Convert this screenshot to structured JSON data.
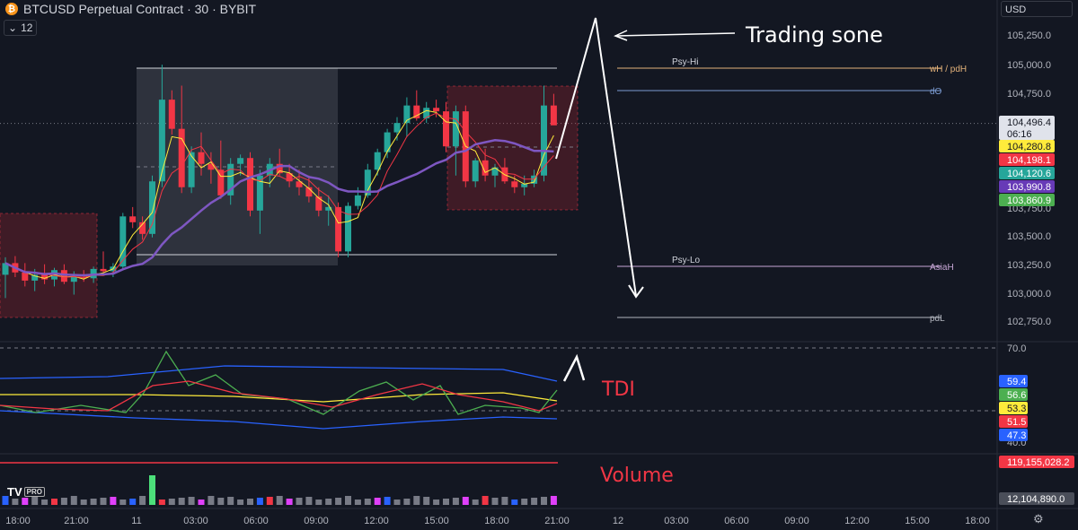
{
  "header": {
    "title": "BTCUSD Perpetual Contract · 30 · BYBIT",
    "logo_glyph": "₿",
    "collapse_label": "12",
    "currency": "USD"
  },
  "price_axis": {
    "ticks": [
      "105,250.0",
      "105,000.0",
      "104,750.0",
      "103,750.0",
      "103,500.0",
      "103,250.0",
      "103,000.0",
      "102,750.0"
    ],
    "badges": [
      {
        "text": "104,496.4",
        "sub": "06:16",
        "bg": "#e0e3eb",
        "fg": "#131722"
      },
      {
        "text": "104,280.8",
        "bg": "#ffeb3b",
        "fg": "#131722"
      },
      {
        "text": "104,198.1",
        "bg": "#f23645",
        "fg": "#ffffff"
      },
      {
        "text": "104,120.6",
        "bg": "#26a69a",
        "fg": "#ffffff"
      },
      {
        "text": "103,990.8",
        "bg": "#673ab7",
        "fg": "#ffffff"
      },
      {
        "text": "103,860.9",
        "bg": "#4caf50",
        "fg": "#ffffff"
      }
    ]
  },
  "levels": [
    {
      "label": "Psy-Hi",
      "tag": "wH / pdH",
      "color": "#e3b27a"
    },
    {
      "label": "",
      "tag": "dO",
      "color": "#7b9bd1"
    },
    {
      "label": "Psy-Lo",
      "tag": "AsiaH",
      "color": "#c7a6d6"
    },
    {
      "label": "",
      "tag": "pdL",
      "color": "#b2b5be"
    }
  ],
  "annotations": {
    "trading_zone": "Trading sone",
    "tdi_label": "TDI",
    "volume_label": "Volume"
  },
  "tdi_axis": {
    "ticks": [
      "70.0",
      "40.0"
    ],
    "badges": [
      {
        "text": "59.4",
        "bg": "#2962ff",
        "fg": "#ffffff"
      },
      {
        "text": "56.6",
        "bg": "#4caf50",
        "fg": "#ffffff"
      },
      {
        "text": "53.3",
        "bg": "#ffeb3b",
        "fg": "#131722"
      },
      {
        "text": "51.5",
        "bg": "#f23645",
        "fg": "#ffffff"
      },
      {
        "text": "47.3",
        "bg": "#2962ff",
        "fg": "#ffffff"
      }
    ]
  },
  "volume_axis": {
    "badges": [
      {
        "text": "119,155,028.2",
        "bg": "#f23645",
        "fg": "#ffffff"
      },
      {
        "text": "12,104,890.0",
        "bg": "#4a4e59",
        "fg": "#ffffff"
      }
    ]
  },
  "time_axis": [
    "18:00",
    "21:00",
    "11",
    "03:00",
    "06:00",
    "09:00",
    "12:00",
    "15:00",
    "18:00",
    "21:00",
    "12",
    "03:00",
    "06:00",
    "09:00",
    "12:00",
    "15:00",
    "18:00"
  ],
  "brand": {
    "logo": "TV",
    "pro": "PRO"
  },
  "colors": {
    "bg": "#131722",
    "up": "#26a69a",
    "down": "#f23645",
    "ema": "#7e57c2"
  },
  "chart_data": {
    "type": "candlestick",
    "price_range": [
      102650,
      105400
    ],
    "candles": [
      [
        103200,
        103350,
        103000,
        103300
      ],
      [
        103300,
        103360,
        103180,
        103220
      ],
      [
        103220,
        103300,
        103100,
        103150
      ],
      [
        103150,
        103250,
        103060,
        103200
      ],
      [
        103200,
        103290,
        103120,
        103160
      ],
      [
        103160,
        103260,
        103100,
        103240
      ],
      [
        103240,
        103290,
        103120,
        103140
      ],
      [
        103140,
        103230,
        103030,
        103180
      ],
      [
        103180,
        103240,
        103140,
        103170
      ],
      [
        103170,
        103270,
        103130,
        103250
      ],
      [
        103250,
        103400,
        103200,
        103230
      ],
      [
        103230,
        103300,
        103180,
        103270
      ],
      [
        103270,
        103730,
        103250,
        103700
      ],
      [
        103700,
        103780,
        103600,
        103650
      ],
      [
        103650,
        103700,
        103500,
        103550
      ],
      [
        103550,
        104050,
        103520,
        104000
      ],
      [
        104000,
        105000,
        103950,
        104700
      ],
      [
        104700,
        104780,
        104400,
        104450
      ],
      [
        104450,
        104820,
        103900,
        103950
      ],
      [
        103950,
        104300,
        103900,
        104250
      ],
      [
        104250,
        104420,
        104050,
        104150
      ],
      [
        104150,
        104250,
        103980,
        104100
      ],
      [
        104100,
        104350,
        103850,
        103880
      ],
      [
        103880,
        104200,
        103800,
        104150
      ],
      [
        104150,
        104230,
        104050,
        104200
      ],
      [
        104200,
        104250,
        103700,
        103750
      ],
      [
        103750,
        104100,
        103550,
        104050
      ],
      [
        104050,
        104200,
        103950,
        104150
      ],
      [
        104150,
        104280,
        104050,
        104070
      ],
      [
        104070,
        104150,
        103950,
        104000
      ],
      [
        104000,
        104100,
        103880,
        103950
      ],
      [
        103950,
        104050,
        103820,
        103870
      ],
      [
        103870,
        103950,
        103700,
        103750
      ],
      [
        103750,
        103880,
        103620,
        103780
      ],
      [
        103780,
        103820,
        103350,
        103400
      ],
      [
        103400,
        103820,
        103350,
        103790
      ],
      [
        103790,
        103950,
        103760,
        103880
      ],
      [
        103880,
        104150,
        103860,
        104100
      ],
      [
        104100,
        104280,
        104050,
        104250
      ],
      [
        104250,
        104450,
        104200,
        104420
      ],
      [
        104420,
        104550,
        104350,
        104500
      ],
      [
        104500,
        104720,
        104380,
        104650
      ],
      [
        104650,
        104780,
        104520,
        104540
      ],
      [
        104540,
        104680,
        104500,
        104630
      ],
      [
        104630,
        104700,
        104550,
        104600
      ],
      [
        104600,
        104680,
        104250,
        104300
      ],
      [
        104300,
        104650,
        104050,
        104600
      ],
      [
        104600,
        104650,
        103950,
        104000
      ],
      [
        104000,
        104200,
        103950,
        104180
      ],
      [
        104180,
        104280,
        104000,
        104050
      ],
      [
        104050,
        104150,
        103950,
        104120
      ],
      [
        104120,
        104200,
        103980,
        104000
      ],
      [
        104000,
        104050,
        103900,
        103950
      ],
      [
        103950,
        104050,
        103880,
        103980
      ],
      [
        103980,
        104100,
        103950,
        104050
      ],
      [
        104050,
        104820,
        104000,
        104650
      ],
      [
        104650,
        104750,
        104500,
        104480
      ]
    ],
    "tdi": {
      "range": [
        40,
        70
      ]
    },
    "volume_last": "12,104,890.0"
  }
}
